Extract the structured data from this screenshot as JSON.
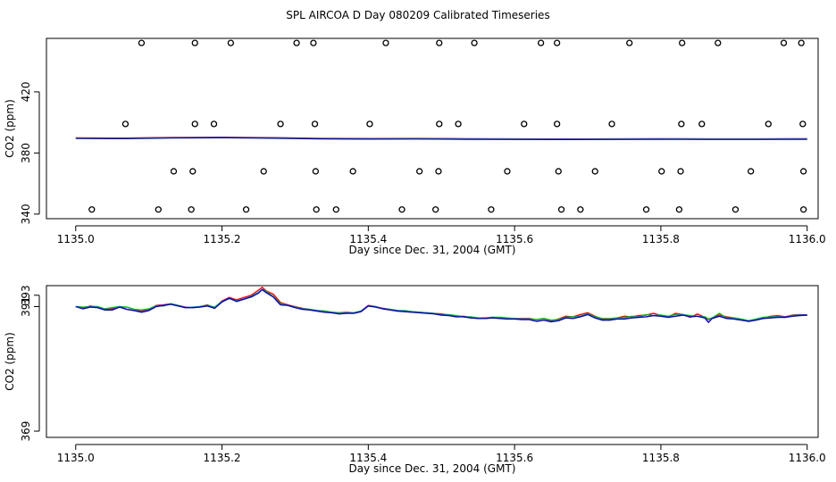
{
  "title": "SPL AIRCOA D  Day 080209  Calibrated Timeseries",
  "chart_data": [
    {
      "type": "scatter",
      "title": "",
      "xlabel": "Day since Dec. 31, 2004 (GMT)",
      "ylabel": "CO2 (ppm)",
      "xlim": [
        1134.96,
        1136.015
      ],
      "ylim": [
        337,
        455
      ],
      "xticks": [
        1135.0,
        1135.2,
        1135.4,
        1135.6,
        1135.8,
        1136.0
      ],
      "xtick_labels": [
        "1135.0",
        "1135.2",
        "1135.4",
        "1135.6",
        "1135.8",
        "1136.0"
      ],
      "yticks": [
        340,
        380,
        420
      ],
      "ytick_labels": [
        "340",
        "380",
        "420"
      ],
      "calibration_points": {
        "marker": "open-circle",
        "levels": [
          {
            "y": 343,
            "x": [
              1135.022,
              1135.113,
              1135.158,
              1135.233,
              1135.329,
              1135.356,
              1135.446,
              1135.492,
              1135.568,
              1135.664,
              1135.69,
              1135.78,
              1135.825,
              1135.902,
              1135.995
            ]
          },
          {
            "y": 368,
            "x": [
              1135.134,
              1135.16,
              1135.257,
              1135.328,
              1135.379,
              1135.47,
              1135.496,
              1135.59,
              1135.66,
              1135.71,
              1135.801,
              1135.827,
              1135.923,
              1135.995
            ]
          },
          {
            "y": 399,
            "x": [
              1135.068,
              1135.163,
              1135.189,
              1135.28,
              1135.327,
              1135.402,
              1135.497,
              1135.523,
              1135.613,
              1135.658,
              1135.733,
              1135.828,
              1135.856,
              1135.947,
              1135.994
            ]
          },
          {
            "y": 452,
            "x": [
              1135.09,
              1135.163,
              1135.212,
              1135.302,
              1135.325,
              1135.424,
              1135.497,
              1135.545,
              1135.636,
              1135.658,
              1135.757,
              1135.829,
              1135.878,
              1135.968,
              1135.992
            ]
          }
        ]
      },
      "series": [
        {
          "name": "line-1",
          "color": "#ff0000"
        },
        {
          "name": "line-2",
          "color": "#00bb00"
        },
        {
          "name": "line-3",
          "color": "#0000dd"
        }
      ]
    },
    {
      "type": "line",
      "title": "",
      "xlabel": "Day since Dec. 31, 2004 (GMT)",
      "ylabel": "CO2 (ppm)",
      "xlim": [
        1134.96,
        1136.015
      ],
      "ylim": [
        367.9,
        394.7
      ],
      "xticks": [
        1135.0,
        1135.2,
        1135.4,
        1135.6,
        1135.8,
        1136.0
      ],
      "xtick_labels": [
        "1135.0",
        "1135.2",
        "1135.4",
        "1135.6",
        "1135.8",
        "1136.0"
      ],
      "yticks": [
        369,
        391,
        393
      ],
      "ytick_labels": [
        "369",
        "391",
        "393"
      ],
      "x": [
        1135.0,
        1135.01,
        1135.02,
        1135.03,
        1135.04,
        1135.05,
        1135.06,
        1135.07,
        1135.08,
        1135.09,
        1135.1,
        1135.11,
        1135.12,
        1135.13,
        1135.14,
        1135.15,
        1135.16,
        1135.17,
        1135.18,
        1135.19,
        1135.2,
        1135.21,
        1135.22,
        1135.23,
        1135.24,
        1135.25,
        1135.255,
        1135.26,
        1135.27,
        1135.28,
        1135.29,
        1135.3,
        1135.31,
        1135.32,
        1135.33,
        1135.34,
        1135.35,
        1135.36,
        1135.37,
        1135.38,
        1135.39,
        1135.4,
        1135.41,
        1135.42,
        1135.43,
        1135.44,
        1135.45,
        1135.46,
        1135.47,
        1135.48,
        1135.49,
        1135.5,
        1135.51,
        1135.52,
        1135.53,
        1135.54,
        1135.55,
        1135.56,
        1135.57,
        1135.58,
        1135.59,
        1135.6,
        1135.61,
        1135.62,
        1135.63,
        1135.64,
        1135.65,
        1135.66,
        1135.67,
        1135.68,
        1135.69,
        1135.7,
        1135.71,
        1135.72,
        1135.73,
        1135.74,
        1135.75,
        1135.76,
        1135.77,
        1135.78,
        1135.79,
        1135.8,
        1135.81,
        1135.82,
        1135.83,
        1135.84,
        1135.85,
        1135.86,
        1135.865,
        1135.87,
        1135.88,
        1135.89,
        1135.9,
        1135.91,
        1135.92,
        1135.93,
        1135.94,
        1135.95,
        1135.96,
        1135.97,
        1135.98,
        1135.99,
        1136.0
      ],
      "series": [
        {
          "name": "line-1",
          "color": "#ff0000",
          "values": [
            391.0,
            390.7,
            391.1,
            390.9,
            390.5,
            390.6,
            391.0,
            390.5,
            390.3,
            390.2,
            390.5,
            391.2,
            391.3,
            391.5,
            391.2,
            390.9,
            390.8,
            391.0,
            391.3,
            390.8,
            392.0,
            392.6,
            392.2,
            392.6,
            393.0,
            393.9,
            394.4,
            393.8,
            393.2,
            391.7,
            391.3,
            391.0,
            390.7,
            390.5,
            390.3,
            390.2,
            390.0,
            389.9,
            390.0,
            389.9,
            390.2,
            391.2,
            391.0,
            390.7,
            390.5,
            390.3,
            390.2,
            390.1,
            390.0,
            389.9,
            389.8,
            389.7,
            389.5,
            389.3,
            389.3,
            389.1,
            389.0,
            389.0,
            389.1,
            389.0,
            388.9,
            388.9,
            388.9,
            388.9,
            388.7,
            388.9,
            388.5,
            388.8,
            389.3,
            389.2,
            389.6,
            389.9,
            389.3,
            388.8,
            388.8,
            389.0,
            389.3,
            389.2,
            389.4,
            389.5,
            389.8,
            389.4,
            389.2,
            389.8,
            389.6,
            389.1,
            389.7,
            389.1,
            388.7,
            389.0,
            389.5,
            389.2,
            389.0,
            388.7,
            388.4,
            388.7,
            389.0,
            389.3,
            389.4,
            389.2,
            389.5,
            389.6,
            389.5
          ]
        },
        {
          "name": "line-2",
          "color": "#00bb00",
          "values": [
            391.0,
            390.9,
            391.0,
            391.0,
            390.6,
            390.8,
            391.0,
            390.9,
            390.5,
            390.4,
            390.6,
            391.1,
            391.1,
            391.5,
            391.2,
            390.8,
            390.9,
            391.0,
            391.2,
            390.9,
            391.9,
            392.4,
            392.0,
            392.3,
            392.8,
            393.5,
            394.0,
            393.7,
            392.8,
            391.5,
            391.2,
            390.9,
            390.6,
            390.5,
            390.3,
            390.2,
            390.0,
            389.9,
            389.9,
            389.9,
            390.2,
            391.1,
            391.0,
            390.6,
            390.5,
            390.3,
            390.3,
            390.1,
            390.0,
            389.9,
            389.8,
            389.6,
            389.6,
            389.4,
            389.2,
            389.2,
            389.0,
            388.9,
            389.1,
            389.1,
            389.0,
            388.9,
            388.8,
            388.8,
            388.7,
            388.9,
            388.6,
            388.7,
            389.1,
            389.2,
            389.3,
            389.7,
            389.2,
            388.9,
            388.9,
            389.0,
            389.0,
            389.3,
            389.2,
            389.6,
            389.4,
            389.5,
            389.3,
            389.6,
            389.6,
            389.4,
            389.3,
            389.2,
            388.8,
            389.0,
            389.8,
            389.0,
            389.0,
            388.8,
            388.5,
            388.8,
            389.1,
            389.2,
            389.3,
            389.1,
            389.4,
            389.5,
            389.5
          ]
        },
        {
          "name": "line-3",
          "color": "#0000dd",
          "values": [
            391.0,
            390.6,
            390.9,
            390.8,
            390.4,
            390.4,
            390.9,
            390.5,
            390.3,
            390.0,
            390.3,
            391.0,
            391.2,
            391.4,
            391.1,
            390.8,
            390.8,
            390.9,
            391.1,
            390.7,
            391.8,
            392.5,
            391.9,
            392.3,
            392.7,
            393.4,
            394.0,
            393.5,
            392.7,
            391.3,
            391.2,
            390.8,
            390.5,
            390.4,
            390.2,
            390.0,
            389.9,
            389.7,
            389.8,
            389.8,
            390.1,
            391.1,
            390.9,
            390.6,
            390.4,
            390.2,
            390.1,
            390.0,
            389.9,
            389.8,
            389.7,
            389.5,
            389.4,
            389.2,
            389.2,
            389.0,
            388.9,
            388.9,
            389.0,
            388.9,
            388.8,
            388.8,
            388.7,
            388.7,
            388.4,
            388.6,
            388.3,
            388.5,
            389.0,
            388.9,
            389.2,
            389.6,
            389.0,
            388.6,
            388.6,
            388.8,
            388.8,
            389.0,
            389.1,
            389.2,
            389.4,
            389.3,
            389.1,
            389.3,
            389.5,
            389.2,
            389.3,
            389.0,
            388.2,
            388.9,
            389.3,
            388.9,
            388.8,
            388.6,
            388.4,
            388.6,
            388.9,
            389.0,
            389.1,
            389.1,
            389.3,
            389.4,
            389.5
          ]
        }
      ]
    }
  ]
}
